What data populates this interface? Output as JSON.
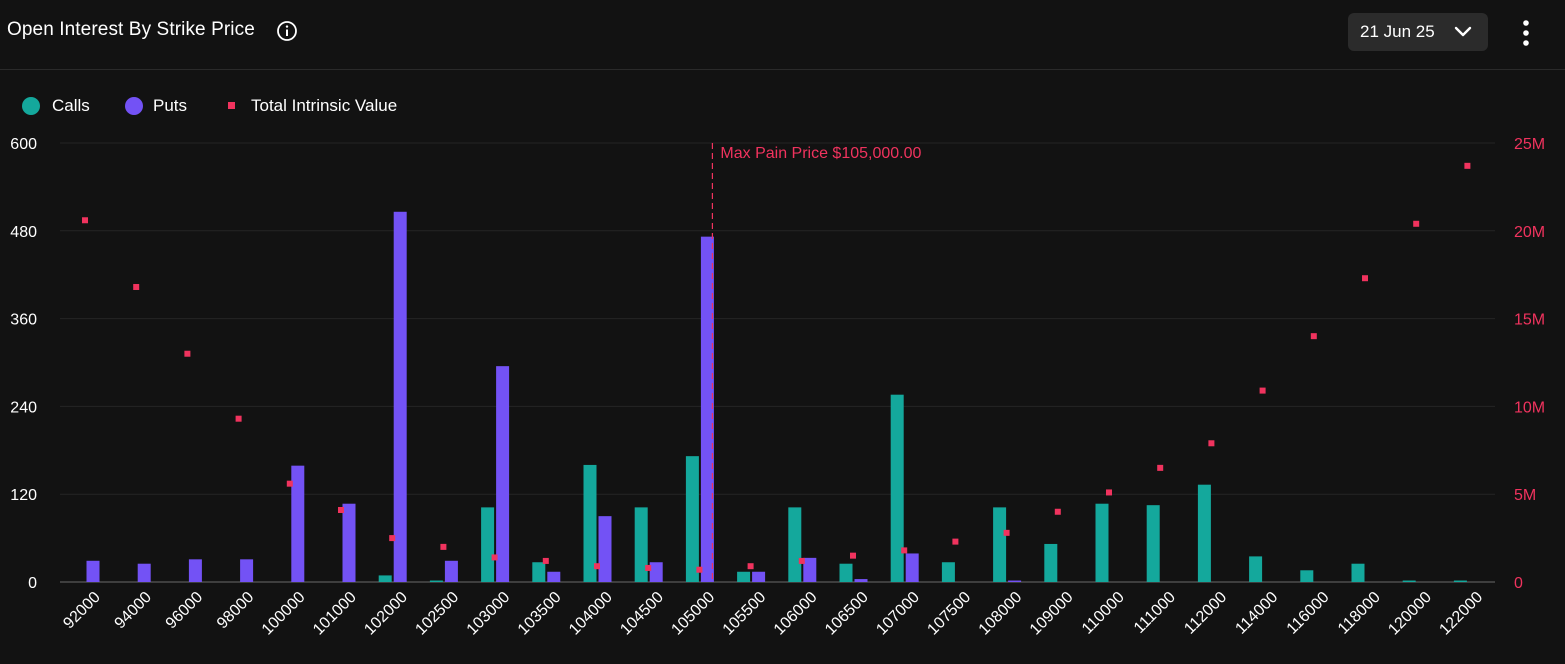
{
  "header": {
    "title": "Open Interest By Strike Price",
    "date_selected": "21 Jun 25"
  },
  "legend": {
    "calls": "Calls",
    "puts": "Puts",
    "intrinsic": "Total Intrinsic Value"
  },
  "colors": {
    "calls": "#14a89c",
    "puts": "#7352f5",
    "intrinsic": "#f0335e",
    "background": "#121212"
  },
  "chart_data": {
    "type": "bar",
    "categories": [
      "92000",
      "94000",
      "96000",
      "98000",
      "100000",
      "101000",
      "102000",
      "102500",
      "103000",
      "103500",
      "104000",
      "104500",
      "105000",
      "105500",
      "106000",
      "106500",
      "107000",
      "107500",
      "108000",
      "109000",
      "110000",
      "111000",
      "112000",
      "114000",
      "116000",
      "118000",
      "120000",
      "122000"
    ],
    "series": [
      {
        "name": "Calls",
        "axis": "left",
        "values": [
          0,
          0,
          0,
          0,
          0,
          0,
          9,
          2,
          102,
          27,
          160,
          102,
          172,
          14,
          102,
          25,
          256,
          27,
          102,
          52,
          107,
          105,
          133,
          35,
          16,
          25,
          2,
          2
        ]
      },
      {
        "name": "Puts",
        "axis": "left",
        "values": [
          29,
          25,
          31,
          31,
          159,
          107,
          506,
          29,
          295,
          14,
          90,
          27,
          472,
          14,
          33,
          4,
          39,
          0,
          2,
          0,
          0,
          0,
          0,
          0,
          0,
          0,
          0,
          0
        ]
      },
      {
        "name": "Total Intrinsic Value",
        "axis": "right",
        "type": "scatter",
        "values": [
          20600000,
          16800000,
          13000000,
          9300000,
          5600000,
          4100000,
          2500000,
          2000000,
          1400000,
          1200000,
          900000,
          800000,
          700000,
          900000,
          1200000,
          1500000,
          1800000,
          2300000,
          2800000,
          4000000,
          5100000,
          6500000,
          7900000,
          10900000,
          14000000,
          17300000,
          20400000,
          23700000
        ]
      }
    ],
    "y_left": {
      "ticks": [
        "0",
        "120",
        "240",
        "360",
        "480",
        "600"
      ],
      "min": 0,
      "max": 600
    },
    "y_right": {
      "ticks": [
        "0",
        "5M",
        "10M",
        "15M",
        "20M",
        "25M"
      ],
      "min": 0,
      "max": 25000000
    },
    "annotation": {
      "label": "Max Pain Price $105,000.00",
      "category": "105000"
    },
    "grid": true,
    "legend_position": "top-left"
  }
}
